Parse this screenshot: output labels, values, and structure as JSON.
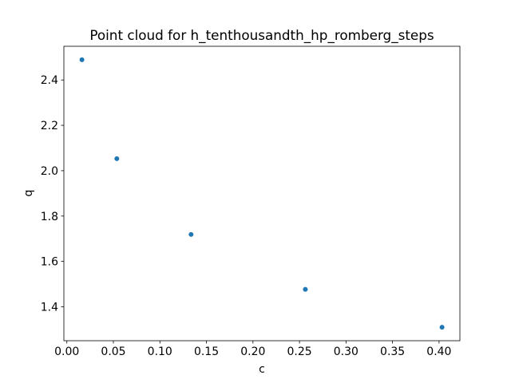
{
  "chart_data": {
    "type": "scatter",
    "title": "Point cloud for h_tenthousandth_hp_romberg_steps",
    "xlabel": "c",
    "ylabel": "q",
    "xlim": [
      -0.0032,
      0.4224
    ],
    "ylim": [
      1.2505,
      2.5485
    ],
    "xticks": [
      0.0,
      0.05,
      0.1,
      0.15,
      0.2,
      0.25,
      0.3,
      0.35,
      0.4
    ],
    "xtick_labels": [
      "0.00",
      "0.05",
      "0.10",
      "0.15",
      "0.20",
      "0.25",
      "0.30",
      "0.35",
      "0.40"
    ],
    "yticks": [
      1.4,
      1.6,
      1.8,
      2.0,
      2.2,
      2.4
    ],
    "ytick_labels": [
      "1.4",
      "1.6",
      "1.8",
      "2.0",
      "2.2",
      "2.4"
    ],
    "grid": false,
    "marker_color": "#1f77b4",
    "series": [
      {
        "x": [
          0.0162,
          0.0537,
          0.1335,
          0.2563,
          0.4032
        ],
        "y": [
          2.489,
          2.053,
          1.719,
          1.477,
          1.31
        ]
      }
    ]
  }
}
